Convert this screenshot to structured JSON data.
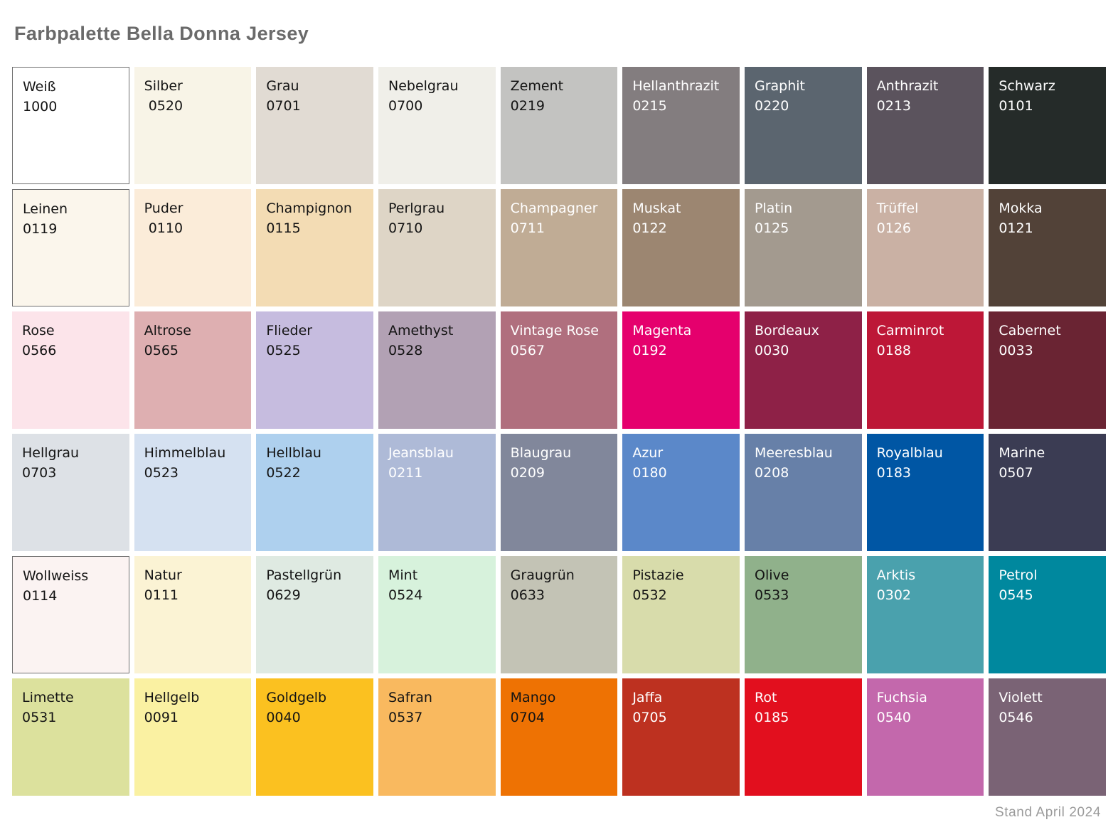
{
  "title": "Farbpalette Bella Donna Jersey",
  "footer": "Stand April 2024",
  "grid": {
    "columns": 9,
    "rows": 6
  },
  "swatches": [
    {
      "name": "Weiß",
      "code": "1000",
      "bg": "#ffffff",
      "fg": "#141414",
      "border": true
    },
    {
      "name": "Silber",
      "code": " 0520",
      "bg": "#f8f4e7",
      "fg": "#141414",
      "border": false
    },
    {
      "name": "Grau",
      "code": "0701",
      "bg": "#e1dbd3",
      "fg": "#141414",
      "border": false
    },
    {
      "name": "Nebelgrau",
      "code": "0700",
      "bg": "#f0efe9",
      "fg": "#141414",
      "border": false
    },
    {
      "name": "Zement",
      "code": "0219",
      "bg": "#c3c3c1",
      "fg": "#141414",
      "border": false
    },
    {
      "name": "Hellanthrazit",
      "code": "0215",
      "bg": "#837d7f",
      "fg": "#ffffff",
      "border": false
    },
    {
      "name": "Graphit",
      "code": "0220",
      "bg": "#5b656f",
      "fg": "#ffffff",
      "border": false
    },
    {
      "name": "Anthrazit",
      "code": "0213",
      "bg": "#5b535d",
      "fg": "#ffffff",
      "border": false
    },
    {
      "name": "Schwarz",
      "code": "0101",
      "bg": "#252b29",
      "fg": "#ffffff",
      "border": false
    },
    {
      "name": "Leinen",
      "code": "0119",
      "bg": "#fbf6ec",
      "fg": "#141414",
      "border": true
    },
    {
      "name": "Puder",
      "code": " 0110",
      "bg": "#fbecd9",
      "fg": "#141414",
      "border": false
    },
    {
      "name": "Champignon",
      "code": "0115",
      "bg": "#f3dcb4",
      "fg": "#141414",
      "border": false
    },
    {
      "name": "Perlgrau",
      "code": "0710",
      "bg": "#ded5c6",
      "fg": "#141414",
      "border": false
    },
    {
      "name": "Champagner",
      "code": "0711",
      "bg": "#c0ac95",
      "fg": "#ffffff",
      "border": false
    },
    {
      "name": "Muskat",
      "code": "0122",
      "bg": "#9c8671",
      "fg": "#ffffff",
      "border": false
    },
    {
      "name": "Platin",
      "code": "0125",
      "bg": "#a39a8f",
      "fg": "#ffffff",
      "border": false
    },
    {
      "name": "Trüffel",
      "code": "0126",
      "bg": "#cab1a4",
      "fg": "#ffffff",
      "border": false
    },
    {
      "name": "Mokka",
      "code": "0121",
      "bg": "#524238",
      "fg": "#ffffff",
      "border": false
    },
    {
      "name": "Rose",
      "code": "0566",
      "bg": "#fce4ea",
      "fg": "#141414",
      "border": false
    },
    {
      "name": "Altrose",
      "code": "0565",
      "bg": "#deafb1",
      "fg": "#141414",
      "border": false
    },
    {
      "name": "Flieder",
      "code": "0525",
      "bg": "#c6bcdf",
      "fg": "#141414",
      "border": false
    },
    {
      "name": "Amethyst",
      "code": "0528",
      "bg": "#b2a1b4",
      "fg": "#141414",
      "border": false
    },
    {
      "name": "Vintage Rose",
      "code": "0567",
      "bg": "#b06f7e",
      "fg": "#ffffff",
      "border": false
    },
    {
      "name": "Magenta",
      "code": "0192",
      "bg": "#e5006d",
      "fg": "#ffffff",
      "border": false
    },
    {
      "name": "Bordeaux",
      "code": "0030",
      "bg": "#8e2147",
      "fg": "#ffffff",
      "border": false
    },
    {
      "name": "Carminrot",
      "code": "0188",
      "bg": "#bd1737",
      "fg": "#ffffff",
      "border": false
    },
    {
      "name": "Cabernet",
      "code": "0033",
      "bg": "#6a2433",
      "fg": "#ffffff",
      "border": false
    },
    {
      "name": "Hellgrau",
      "code": "0703",
      "bg": "#dde1e6",
      "fg": "#141414",
      "border": false
    },
    {
      "name": "Himmelblau",
      "code": "0523",
      "bg": "#d5e1f1",
      "fg": "#141414",
      "border": false
    },
    {
      "name": "Hellblau",
      "code": "0522",
      "bg": "#aed0ee",
      "fg": "#141414",
      "border": false
    },
    {
      "name": "Jeansblau",
      "code": "0211",
      "bg": "#aebad7",
      "fg": "#ffffff",
      "border": false
    },
    {
      "name": "Blaugrau",
      "code": "0209",
      "bg": "#81879b",
      "fg": "#ffffff",
      "border": false
    },
    {
      "name": "Azur",
      "code": "0180",
      "bg": "#5b88c9",
      "fg": "#ffffff",
      "border": false
    },
    {
      "name": "Meeresblau",
      "code": "0208",
      "bg": "#6780a8",
      "fg": "#ffffff",
      "border": false
    },
    {
      "name": "Royalblau",
      "code": "0183",
      "bg": "#0056a4",
      "fg": "#ffffff",
      "border": false
    },
    {
      "name": "Marine",
      "code": "0507",
      "bg": "#3b3c53",
      "fg": "#ffffff",
      "border": false
    },
    {
      "name": "Wollweiss",
      "code": "0114",
      "bg": "#fbf3f2",
      "fg": "#141414",
      "border": true
    },
    {
      "name": "Natur",
      "code": "0111",
      "bg": "#fbf3d4",
      "fg": "#141414",
      "border": false
    },
    {
      "name": "Pastellgrün",
      "code": "0629",
      "bg": "#dfeae2",
      "fg": "#141414",
      "border": false
    },
    {
      "name": "Mint",
      "code": "0524",
      "bg": "#d7f2dc",
      "fg": "#141414",
      "border": false
    },
    {
      "name": "Graugrün",
      "code": "0633",
      "bg": "#c3c3b5",
      "fg": "#141414",
      "border": false
    },
    {
      "name": "Pistazie",
      "code": "0532",
      "bg": "#d8dcab",
      "fg": "#141414",
      "border": false
    },
    {
      "name": "Olive",
      "code": "0533",
      "bg": "#90b18b",
      "fg": "#141414",
      "border": false
    },
    {
      "name": "Arktis",
      "code": "0302",
      "bg": "#4aa1ad",
      "fg": "#ffffff",
      "border": false
    },
    {
      "name": "Petrol",
      "code": "0545",
      "bg": "#00889e",
      "fg": "#ffffff",
      "border": false
    },
    {
      "name": "Limette",
      "code": "0531",
      "bg": "#dce19d",
      "fg": "#141414",
      "border": false
    },
    {
      "name": "Hellgelb",
      "code": "0091",
      "bg": "#faf1a2",
      "fg": "#141414",
      "border": false
    },
    {
      "name": "Goldgelb",
      "code": "0040",
      "bg": "#fbc120",
      "fg": "#141414",
      "border": false
    },
    {
      "name": "Safran",
      "code": "0537",
      "bg": "#f9b95f",
      "fg": "#141414",
      "border": false
    },
    {
      "name": "Mango",
      "code": "0704",
      "bg": "#ee7203",
      "fg": "#141414",
      "border": false
    },
    {
      "name": "Jaffa",
      "code": "0705",
      "bg": "#bd3120",
      "fg": "#ffffff",
      "border": false
    },
    {
      "name": "Rot",
      "code": "0185",
      "bg": "#e20f1e",
      "fg": "#ffffff",
      "border": false
    },
    {
      "name": "Fuchsia",
      "code": "0540",
      "bg": "#c368ac",
      "fg": "#ffffff",
      "border": false
    },
    {
      "name": "Violett",
      "code": "0546",
      "bg": "#7a6375",
      "fg": "#ffffff",
      "border": false
    }
  ]
}
